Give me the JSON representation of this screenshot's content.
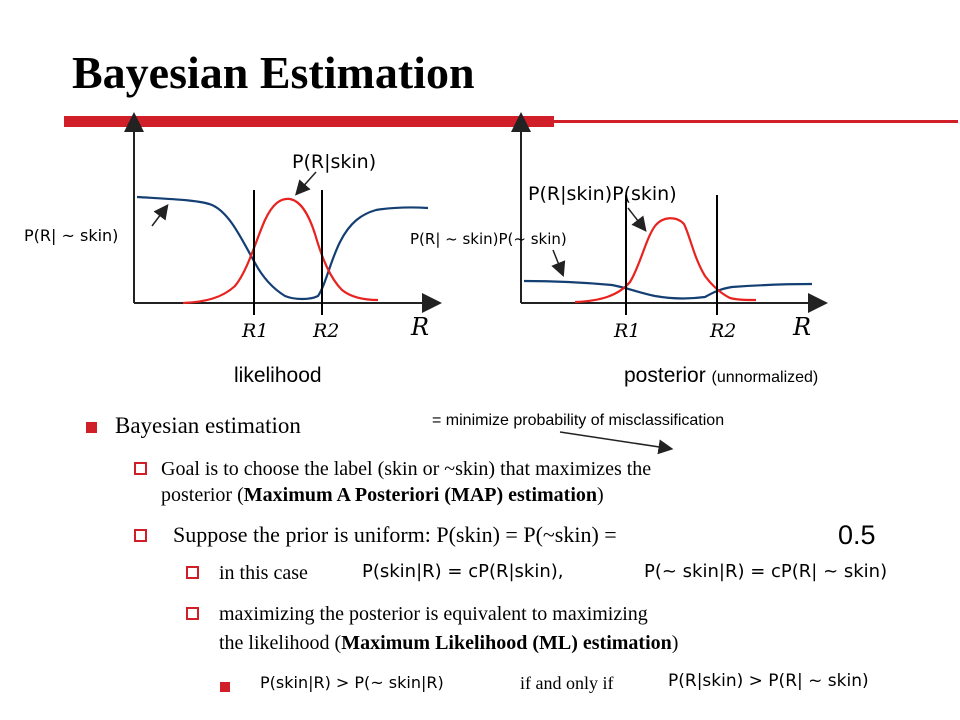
{
  "slide": {
    "title": "Bayesian Estimation",
    "colors": {
      "accent": "#d11f2a",
      "curve_red": "#e8231f",
      "curve_blue": "#143f73"
    }
  },
  "figures": {
    "left": {
      "caption": "likelihood",
      "label_skin": "P(R|skin)",
      "label_not_skin": "P(R| ~ skin)",
      "axis_label": "R",
      "threshold_1": "R1",
      "threshold_2": "R2"
    },
    "right": {
      "caption_main": "posterior",
      "caption_sub": "(unnormalized)",
      "label_skin": "P(R|skin)P(skin)",
      "label_not_skin": "P(R| ~ skin)P(~ skin)",
      "axis_label": "R",
      "threshold_1": "R1",
      "threshold_2": "R2"
    }
  },
  "annotation": "= minimize probability of misclassification",
  "bullets": {
    "b1": "Bayesian estimation",
    "b1_1_line1": "Goal is to choose the label (skin or ~skin) that maximizes the",
    "b1_1_line2_pre": "posterior (",
    "b1_1_line2_bold": "Maximum A Posteriori (MAP) estimation",
    "b1_1_line2_post": ")",
    "b1_2": "Suppose the prior is uniform:  P(skin) = P(~skin) =",
    "b1_2_value": "0.5",
    "b1_2_1": "in this case",
    "b1_2_1_formula_a": "P(skin|R) = cP(R|skin),",
    "b1_2_1_formula_b": "P(~ skin|R) = cP(R| ~ skin)",
    "b1_2_2_line1": "maximizing the posterior is equivalent to maximizing",
    "b1_2_2_line2_pre": "the likelihood (",
    "b1_2_2_line2_bold": "Maximum Likelihood (ML) estimation",
    "b1_2_2_line2_post": ")",
    "b1_2_2_1_formula_a": "P(skin|R) > P(~ skin|R)",
    "b1_2_2_1_mid": "if and only if",
    "b1_2_2_1_formula_b": "P(R|skin) > P(R| ~ skin)"
  }
}
